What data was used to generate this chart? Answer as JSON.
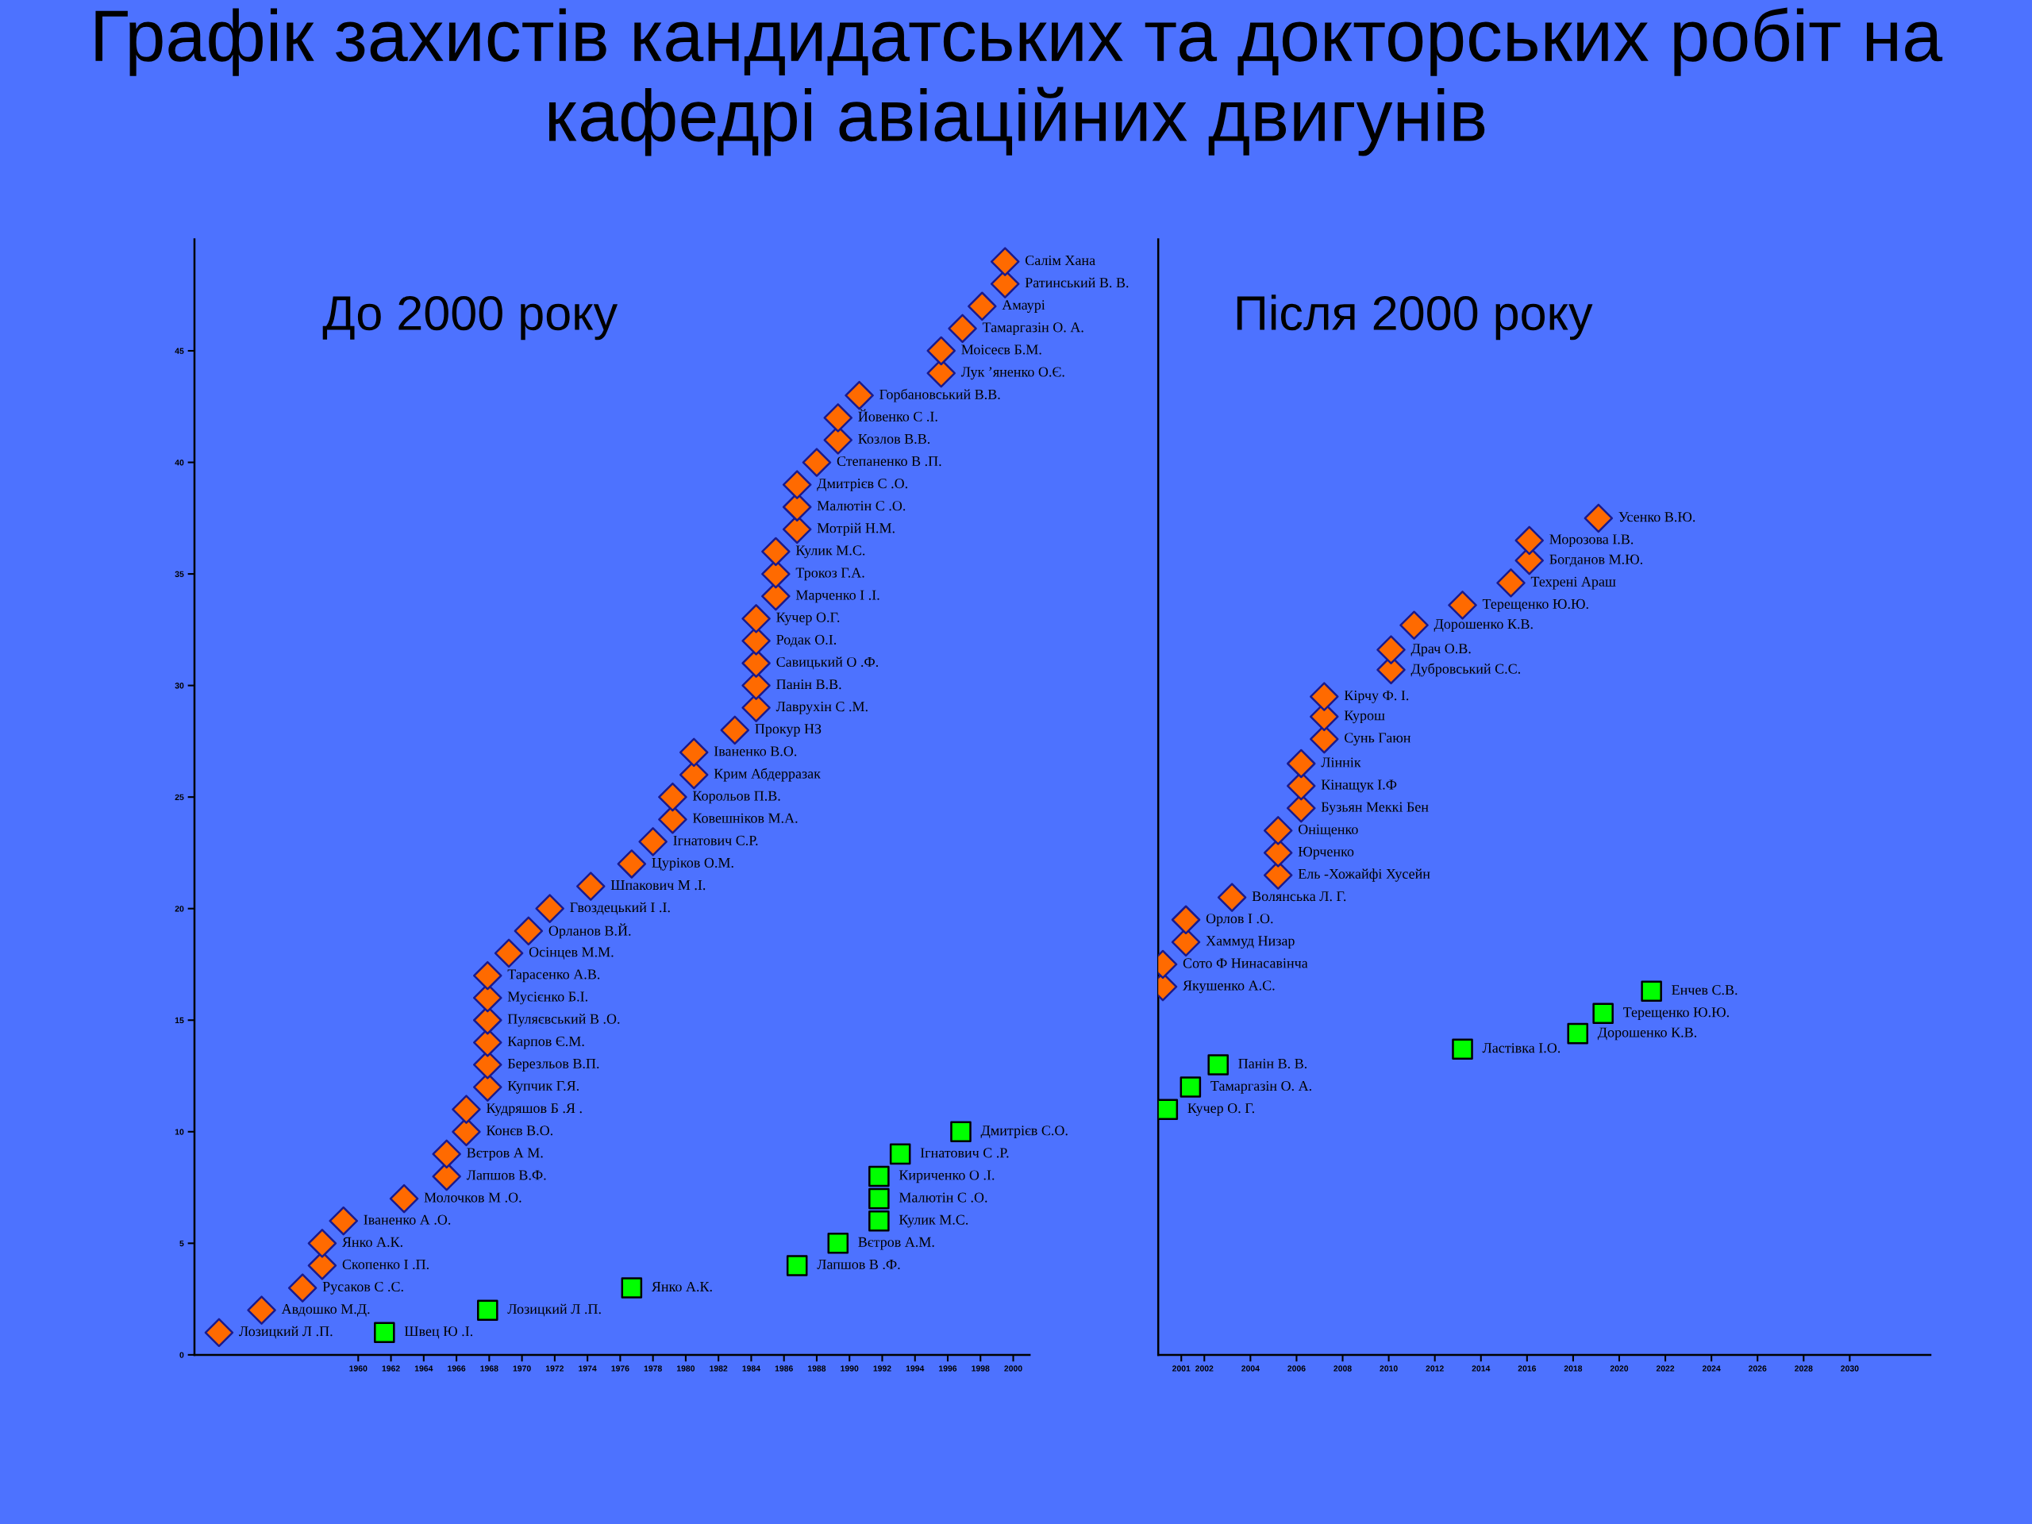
{
  "chart_data": [
    {
      "type": "scatter",
      "title": "Графік захистів кандидатських та докторських робіт на кафедрі авіаційних двигунів",
      "xlim": [
        1950,
        2001
      ],
      "ylim": [
        0,
        50
      ],
      "xticks": [
        1960,
        1962,
        1964,
        1966,
        1968,
        1970,
        1972,
        1974,
        1976,
        1978,
        1980,
        1982,
        1984,
        1986,
        1988,
        1990,
        1992,
        1994,
        1996,
        1998,
        2000
      ],
      "yticks": [
        0,
        5,
        10,
        15,
        20,
        25,
        30,
        35,
        40,
        45
      ],
      "grid": false,
      "legend": false,
      "series": [
        {
          "color": "#ff6a00",
          "marker": "diamond",
          "x": [
            1951.5,
            1954.1,
            1956.6,
            1957.8,
            1957.8,
            1959.1,
            1962.8,
            1965.4,
            1965.4,
            1966.6,
            1966.6,
            1967.9,
            1967.9,
            1967.9,
            1967.9,
            1967.9,
            1967.9,
            1969.2,
            1970.4,
            1971.7,
            1974.2,
            1976.7,
            1978.0,
            1979.2,
            1979.2,
            1980.5,
            1980.5,
            1983.0,
            1984.3,
            1984.3,
            1984.3,
            1984.3,
            1984.3,
            1985.5,
            1985.5,
            1985.5,
            1986.8,
            1986.8,
            1986.8,
            1988.0,
            1989.3,
            1989.3,
            1990.6,
            1995.6,
            1995.6,
            1996.9,
            1998.1,
            1999.5,
            1999.5
          ],
          "values": [
            1,
            2,
            3,
            4,
            5,
            6,
            7,
            8,
            9,
            10,
            11,
            12,
            13,
            14,
            15,
            16,
            17,
            18,
            19,
            20,
            21,
            22,
            23,
            24,
            25,
            26,
            27,
            28,
            29,
            30,
            31,
            32,
            33,
            34,
            35,
            36,
            37,
            38,
            39,
            40,
            41,
            42,
            43,
            44,
            45,
            46,
            47,
            48,
            49
          ]
        },
        {
          "color": "#00ff00",
          "marker": "square",
          "x": [
            1961.6,
            1967.9,
            1976.7,
            1986.8,
            1989.3,
            1991.8,
            1991.8,
            1991.8,
            1993.1,
            1996.8
          ],
          "values": [
            1,
            2,
            3,
            4,
            5,
            6,
            7,
            8,
            9,
            10
          ]
        }
      ],
      "annotations": [
        "До 2000 року",
        {
          "text": "Лозицкий Л .П.",
          "x": 1951.5,
          "y": 1
        },
        {
          "text": "Авдошко М.Д.",
          "x": 1954.1,
          "y": 2
        },
        {
          "text": "Русаков С .С.",
          "x": 1956.6,
          "y": 3
        },
        {
          "text": "Скопенко І .П.",
          "x": 1957.8,
          "y": 4
        },
        {
          "text": "Янко А.К.",
          "x": 1957.8,
          "y": 5
        },
        {
          "text": "Іваненко А .О.",
          "x": 1959.1,
          "y": 6
        },
        {
          "text": "Молочков М .О.",
          "x": 1962.8,
          "y": 7
        },
        {
          "text": "Лапшов В.Ф.",
          "x": 1965.4,
          "y": 8
        },
        {
          "text": "Вєтров А М.",
          "x": 1965.4,
          "y": 9
        },
        {
          "text": "Конєв В.О.",
          "x": 1966.6,
          "y": 10
        },
        {
          "text": "Кудряшов Б .Я .",
          "x": 1966.6,
          "y": 11
        },
        {
          "text": "Купчик Г.Я.",
          "x": 1967.9,
          "y": 12
        },
        {
          "text": "Березльов В.П.",
          "x": 1967.9,
          "y": 13
        },
        {
          "text": "Карпов Є.М.",
          "x": 1967.9,
          "y": 14
        },
        {
          "text": "Пуляєвський В .О.",
          "x": 1967.9,
          "y": 15
        },
        {
          "text": "Мусієнко Б.І.",
          "x": 1967.9,
          "y": 16
        },
        {
          "text": "Тарасенко А.В.",
          "x": 1967.9,
          "y": 17
        },
        {
          "text": "Осінцев М.М.",
          "x": 1969.2,
          "y": 18
        },
        {
          "text": "Орланов В.Й.",
          "x": 1970.4,
          "y": 19
        },
        {
          "text": "Гвоздецький І .І.",
          "x": 1971.7,
          "y": 20
        },
        {
          "text": "Шпакович М .І.",
          "x": 1974.2,
          "y": 21
        },
        {
          "text": "Цуріков О.М.",
          "x": 1976.7,
          "y": 22
        },
        {
          "text": "Ігнатович С.Р.",
          "x": 1978.0,
          "y": 23
        },
        {
          "text": "Ковешніков М.А.",
          "x": 1979.2,
          "y": 24
        },
        {
          "text": "Корольов П.В.",
          "x": 1979.2,
          "y": 25
        },
        {
          "text": "Крим Абдерразак",
          "x": 1980.5,
          "y": 26
        },
        {
          "text": "Іваненко В.О.",
          "x": 1980.5,
          "y": 27
        },
        {
          "text": "Прокур НЗ",
          "x": 1983.0,
          "y": 28
        },
        {
          "text": "Лаврухін С .М.",
          "x": 1984.3,
          "y": 29
        },
        {
          "text": "Панін В.В.",
          "x": 1984.3,
          "y": 30
        },
        {
          "text": "Савицький О .Ф.",
          "x": 1984.3,
          "y": 31
        },
        {
          "text": "Родак О.І.",
          "x": 1984.3,
          "y": 32
        },
        {
          "text": "Кучер О.Г.",
          "x": 1984.3,
          "y": 33
        },
        {
          "text": "Марченко І .І.",
          "x": 1985.5,
          "y": 34
        },
        {
          "text": "Трокоз Г.А.",
          "x": 1985.5,
          "y": 35
        },
        {
          "text": "Кулик М.С.",
          "x": 1985.5,
          "y": 36
        },
        {
          "text": "Мотрій Н.М.",
          "x": 1986.8,
          "y": 37
        },
        {
          "text": "Малютін С .О.",
          "x": 1986.8,
          "y": 38
        },
        {
          "text": "Дмитрієв С .О.",
          "x": 1986.8,
          "y": 39
        },
        {
          "text": "Степаненко В .П.",
          "x": 1988.0,
          "y": 40
        },
        {
          "text": "Козлов В.В.",
          "x": 1989.3,
          "y": 41
        },
        {
          "text": "Йовенко С .І.",
          "x": 1989.3,
          "y": 42
        },
        {
          "text": "Горбановський В.В.",
          "x": 1990.6,
          "y": 43
        },
        {
          "text": "Лук ’яненко О.Є.",
          "x": 1995.6,
          "y": 44
        },
        {
          "text": "Моісеєв Б.М.",
          "x": 1995.6,
          "y": 45
        },
        {
          "text": "Тамаргазін О. А.",
          "x": 1996.9,
          "y": 46
        },
        {
          "text": "Амаурі",
          "x": 1998.1,
          "y": 47
        },
        {
          "text": "Ратинський В. В.",
          "x": 1999.5,
          "y": 48
        },
        {
          "text": "Салім Хана",
          "x": 1999.5,
          "y": 49
        },
        {
          "text": "Швец Ю .І.",
          "x": 1961.6,
          "y": 1
        },
        {
          "text": "Лозицкий Л .П.",
          "x": 1967.9,
          "y": 2
        },
        {
          "text": "Янко А.К.",
          "x": 1976.7,
          "y": 3
        },
        {
          "text": "Лапшов В .Ф.",
          "x": 1986.8,
          "y": 4
        },
        {
          "text": "Вєтров А.М.",
          "x": 1989.3,
          "y": 5
        },
        {
          "text": "Кулик М.С.",
          "x": 1991.8,
          "y": 6
        },
        {
          "text": "Малютін С .О.",
          "x": 1991.8,
          "y": 7
        },
        {
          "text": "Кириченко О .І.",
          "x": 1991.8,
          "y": 8
        },
        {
          "text": "Ігнатович С .Р.",
          "x": 1993.1,
          "y": 9
        },
        {
          "text": "Дмитрієв С.О.",
          "x": 1996.8,
          "y": 10
        }
      ]
    },
    {
      "type": "scatter",
      "xlim": [
        2000,
        2033.5
      ],
      "ylim": [
        0,
        50
      ],
      "tick_labels": "x",
      "xticks": [
        2001,
        2002,
        2004,
        2006,
        2008,
        2010,
        2012,
        2014,
        2016,
        2018,
        2020,
        2022,
        2024,
        2026,
        2028,
        2030
      ],
      "grid": false,
      "legend": false,
      "series": [
        {
          "color": "#ff6a00",
          "marker": "diamond",
          "x": [
            2000.2,
            2000.2,
            2001.2,
            2001.2,
            2003.2,
            2005.2,
            2005.2,
            2005.2,
            2006.2,
            2006.2,
            2006.2,
            2007.2,
            2007.2,
            2007.2,
            2010.1,
            2010.1,
            2011.1,
            2013.2,
            2015.3,
            2016.1,
            2016.1,
            2019.1
          ],
          "values": [
            16.5,
            17.5,
            18.5,
            19.5,
            20.5,
            21.5,
            22.5,
            23.5,
            24.5,
            25.5,
            26.5,
            27.6,
            28.6,
            29.5,
            30.7,
            31.6,
            32.7,
            33.6,
            34.6,
            35.6,
            36.5,
            37.5
          ]
        },
        {
          "color": "#00ff00",
          "marker": "square",
          "x": [
            2000.4,
            2001.4,
            2002.6,
            2013.2,
            2018.2,
            2019.3,
            2021.4
          ],
          "values": [
            11.0,
            12.0,
            13.0,
            13.7,
            14.4,
            15.3,
            16.3
          ]
        }
      ],
      "annotations": [
        "Після 2000 року",
        {
          "text": "Якушенко А.С.",
          "x": 2000.2,
          "y": 16.5
        },
        {
          "text": "Сото Ф Нинасавінча",
          "x": 2000.2,
          "y": 17.5
        },
        {
          "text": "Хаммуд Низар",
          "x": 2001.2,
          "y": 18.5
        },
        {
          "text": "Орлов І .О.",
          "x": 2001.2,
          "y": 19.5
        },
        {
          "text": "Волянська Л. Г.",
          "x": 2003.2,
          "y": 20.5
        },
        {
          "text": "Ель -Хожайфі Хусейн",
          "x": 2005.2,
          "y": 21.5
        },
        {
          "text": "Юрченко",
          "x": 2005.2,
          "y": 22.5
        },
        {
          "text": "Оніщенко",
          "x": 2005.2,
          "y": 23.5
        },
        {
          "text": "Бузьян Меккі Бен",
          "x": 2006.2,
          "y": 24.5
        },
        {
          "text": "Кінащук І.Ф",
          "x": 2006.2,
          "y": 25.5
        },
        {
          "text": "Ліннік",
          "x": 2006.2,
          "y": 26.5
        },
        {
          "text": "Сунь Гаюн",
          "x": 2007.2,
          "y": 27.6
        },
        {
          "text": "Курош",
          "x": 2007.2,
          "y": 28.6
        },
        {
          "text": "Кірчу Ф. І.",
          "x": 2007.2,
          "y": 29.5
        },
        {
          "text": "Дубровський С.С.",
          "x": 2010.1,
          "y": 30.7
        },
        {
          "text": "Драч О.В.",
          "x": 2010.1,
          "y": 31.6
        },
        {
          "text": "Дорошенко К.В.",
          "x": 2011.1,
          "y": 32.7
        },
        {
          "text": "Терещенко Ю.Ю.",
          "x": 2013.2,
          "y": 33.6
        },
        {
          "text": "Техрені Араш",
          "x": 2015.3,
          "y": 34.6
        },
        {
          "text": "Богданов М.Ю.",
          "x": 2016.1,
          "y": 35.6
        },
        {
          "text": "Морозова І.В.",
          "x": 2016.1,
          "y": 36.5
        },
        {
          "text": "Усенко В.Ю.",
          "x": 2019.1,
          "y": 37.5
        },
        {
          "text": "Кучер О. Г.",
          "x": 2000.4,
          "y": 11.0
        },
        {
          "text": "Тамаргазін О. А.",
          "x": 2001.4,
          "y": 12.0
        },
        {
          "text": "Панін В. В.",
          "x": 2002.6,
          "y": 13.0
        },
        {
          "text": "Ластівка І.О.",
          "x": 2013.2,
          "y": 13.7
        },
        {
          "text": "Дорошенко К.В.",
          "x": 2018.2,
          "y": 14.4
        },
        {
          "text": "Терещенко Ю.Ю.",
          "x": 2019.3,
          "y": 15.3
        },
        {
          "text": "Енчев С.В.",
          "x": 2021.4,
          "y": 16.3
        }
      ]
    }
  ]
}
